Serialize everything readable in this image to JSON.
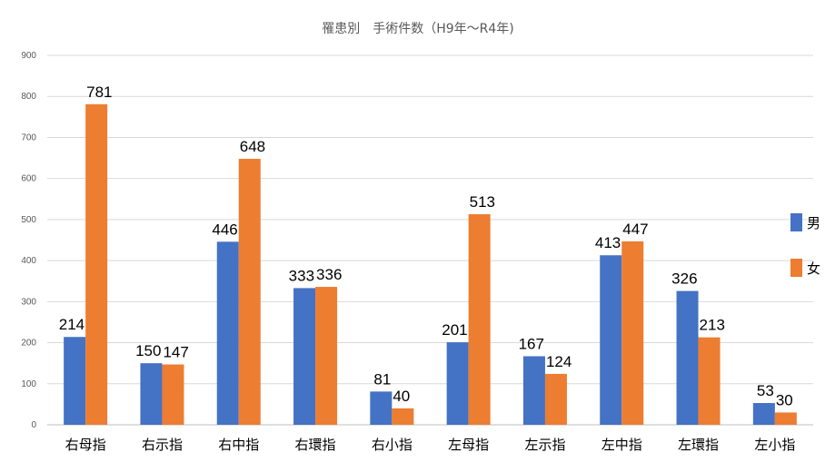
{
  "chart_data": {
    "type": "bar",
    "title": "罹患別　手術件数（H9年〜R4年)",
    "xlabel": "",
    "ylabel": "",
    "ylim": [
      0,
      900
    ],
    "yticks": [
      0,
      100,
      200,
      300,
      400,
      500,
      600,
      700,
      800,
      900
    ],
    "grid": true,
    "legend_position": "right",
    "categories": [
      "右母指",
      "右示指",
      "右中指",
      "右環指",
      "右小指",
      "左母指",
      "左示指",
      "左中指",
      "左環指",
      "左小指"
    ],
    "series": [
      {
        "name": "男",
        "color": "#4472c4",
        "values": [
          214,
          150,
          446,
          333,
          81,
          201,
          167,
          413,
          326,
          53
        ]
      },
      {
        "name": "女",
        "color": "#ed7d31",
        "values": [
          781,
          147,
          648,
          336,
          40,
          513,
          124,
          447,
          213,
          30
        ]
      }
    ]
  }
}
